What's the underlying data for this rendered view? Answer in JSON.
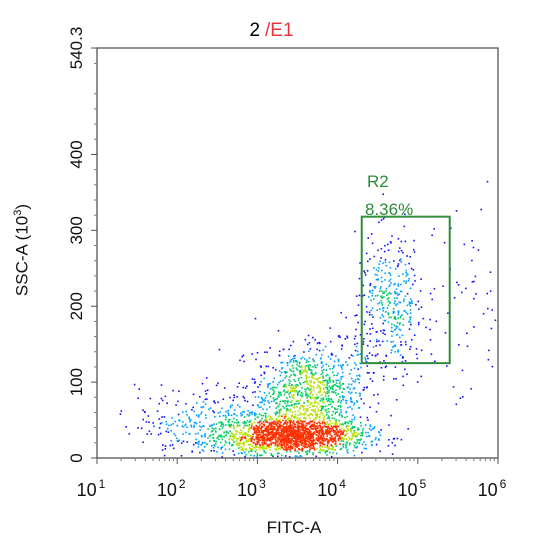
{
  "chart_data": {
    "type": "scatter",
    "title_prefix": "2",
    "title_separator": "/",
    "title_gate": "E1",
    "xlabel": "FITC-A",
    "ylabel": "SSC-A  (10",
    "ylabel_exp": "3",
    "ylabel_close": ")",
    "x_scale": "log",
    "xlim": [
      10,
      1000000
    ],
    "x_ticks": [
      {
        "value": 10,
        "base": "10",
        "exp": "1"
      },
      {
        "value": 100,
        "base": "10",
        "exp": "2"
      },
      {
        "value": 1000,
        "base": "10",
        "exp": "3"
      },
      {
        "value": 10000,
        "base": "10",
        "exp": "4"
      },
      {
        "value": 100000,
        "base": "10",
        "exp": "5"
      },
      {
        "value": 1000000,
        "base": "10",
        "exp": "6"
      }
    ],
    "y_scale": "linear",
    "ylim": [
      0,
      540.3
    ],
    "y_ticks": [
      {
        "value": 0,
        "label": "0"
      },
      {
        "value": 100,
        "label": "100"
      },
      {
        "value": 200,
        "label": "200"
      },
      {
        "value": 300,
        "label": "300"
      },
      {
        "value": 400,
        "label": "400"
      },
      {
        "value": 540.3,
        "label": "540.3"
      }
    ],
    "grid": false,
    "density_coloring": true,
    "colormap": [
      "#1010ff",
      "#00a0ff",
      "#00cc66",
      "#b8e000",
      "#ff3000"
    ],
    "populations": [
      {
        "log_x": 3.45,
        "y": 30,
        "sd_log_x": 0.45,
        "sd_y": 12,
        "count": 1600
      },
      {
        "log_x": 3.6,
        "y": 85,
        "sd_log_x": 0.32,
        "sd_y": 28,
        "count": 700
      },
      {
        "log_x": 2.6,
        "y": 45,
        "sd_log_x": 0.55,
        "sd_y": 25,
        "count": 450
      },
      {
        "log_x": 4.65,
        "y": 200,
        "sd_log_x": 0.22,
        "sd_y": 45,
        "count": 380
      },
      {
        "log_x": 3.9,
        "y": 120,
        "sd_log_x": 0.4,
        "sd_y": 25,
        "count": 160
      },
      {
        "log_x": 5.6,
        "y": 200,
        "sd_log_x": 0.25,
        "sd_y": 70,
        "count": 50
      }
    ],
    "gates": [
      {
        "name": "R2",
        "percent": "8.36%",
        "x_range": [
          20000,
          250000
        ],
        "y_range": [
          125,
          318
        ],
        "color": "#2e8b3a"
      }
    ]
  }
}
